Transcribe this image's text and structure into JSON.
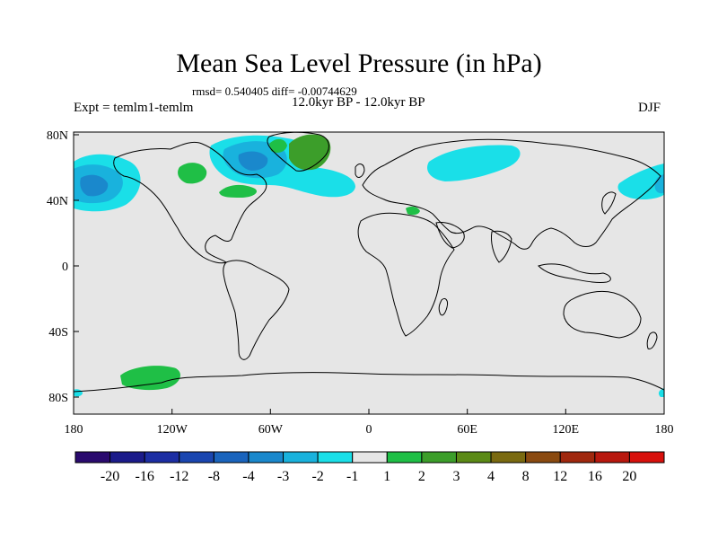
{
  "title": "Mean Sea Level Pressure (in hPa)",
  "stats": "rmsd= 0.540405 diff= -0.00744629",
  "period": "12.0kyr BP - 12.0kyr BP",
  "experiment": "Expt = temlm1-temlm",
  "season": "DJF",
  "lat_labels": [
    "80N",
    "40N",
    "0",
    "40S",
    "80S"
  ],
  "lon_labels": [
    "180",
    "120W",
    "60W",
    "0",
    "60E",
    "120E",
    "180"
  ],
  "colorbar": {
    "labels": [
      "-20",
      "-16",
      "-12",
      "-8",
      "-4",
      "-3",
      "-2",
      "-1",
      "1",
      "2",
      "3",
      "4",
      "8",
      "12",
      "16",
      "20"
    ],
    "colors": [
      "#2a0a6e",
      "#1b1b8a",
      "#1c2ea3",
      "#1a46b0",
      "#1a64bd",
      "#1a88cc",
      "#19b2dd",
      "#1adfe8",
      "#e6e6e6",
      "#1fbf46",
      "#3c9e2a",
      "#5b8a16",
      "#7a6a10",
      "#8a4a10",
      "#a0280e",
      "#b8180e",
      "#d8100c"
    ]
  },
  "colors": {
    "background": "#e6e6e6",
    "cyan": "#1adfe8",
    "light_blue": "#19b2dd",
    "blue": "#1a88cc",
    "green": "#1fbf46",
    "dark_green": "#3c9e2a"
  }
}
